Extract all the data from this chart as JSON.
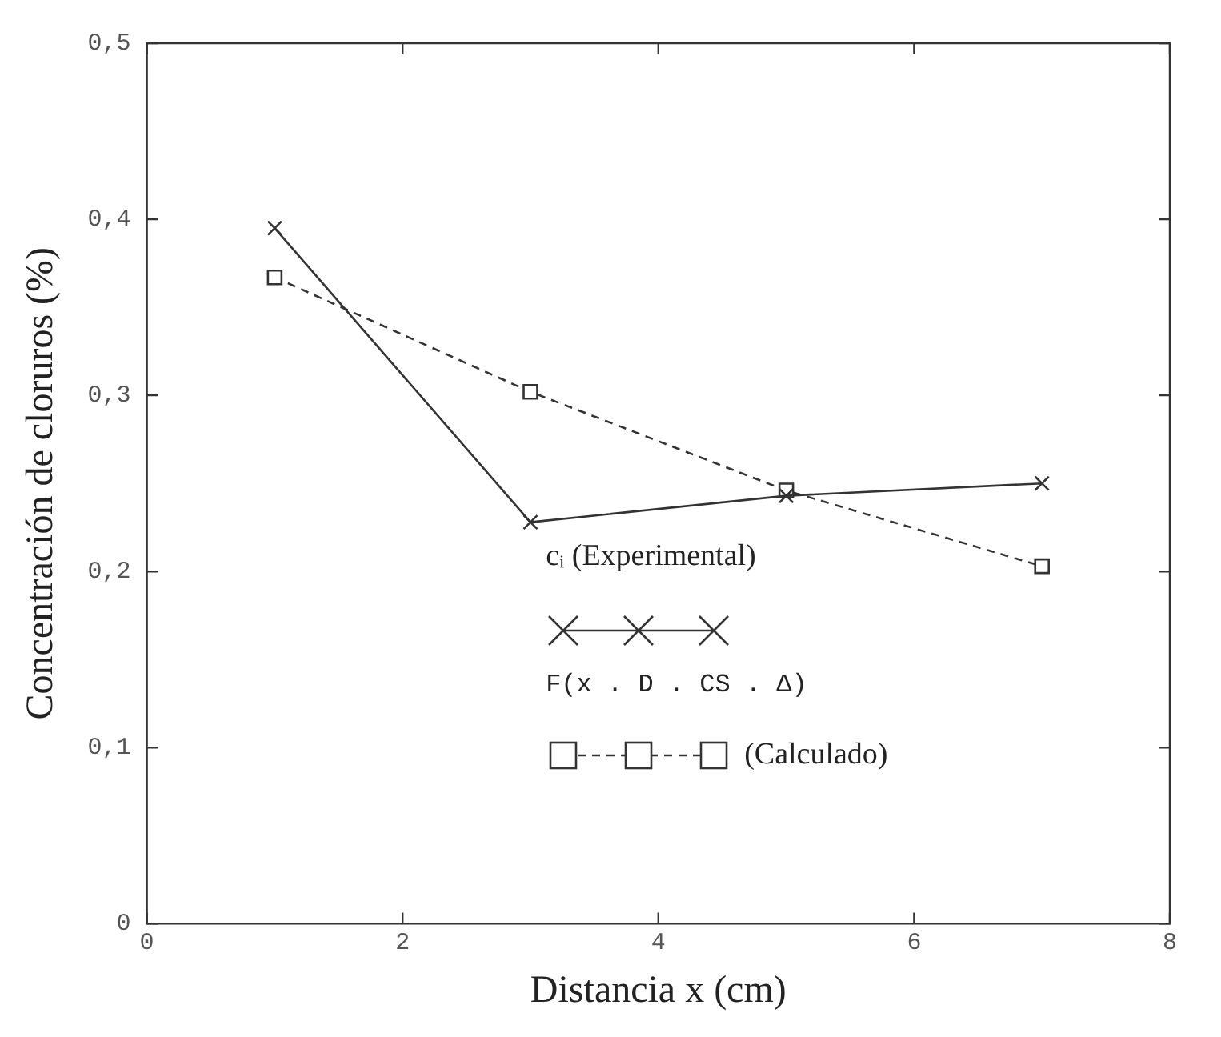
{
  "chart_data": {
    "type": "line",
    "xlabel": "Distancia x (cm)",
    "ylabel": "Concentración de cloruros (%)",
    "xlim": [
      0,
      8
    ],
    "xticks": [
      0,
      2,
      4,
      6,
      8
    ],
    "ylim": [
      0,
      0.5
    ],
    "yticks": [
      {
        "value": 0,
        "label": "0"
      },
      {
        "value": 0.1,
        "label": "0,1"
      },
      {
        "value": 0.2,
        "label": "0,2"
      },
      {
        "value": 0.3,
        "label": "0,3"
      },
      {
        "value": 0.4,
        "label": "0,4"
      },
      {
        "value": 0.5,
        "label": "0,5"
      }
    ],
    "grid": false,
    "legend": "bottom right",
    "annotations": [
      "F(x . D . CS . Δ)"
    ],
    "series": [
      {
        "name": "cᵢ (Experimental)",
        "color": "#333333",
        "marker": "cross",
        "line_style": "solid",
        "x": [
          1,
          3,
          5,
          7
        ],
        "values": [
          0.395,
          0.228,
          0.243,
          0.25
        ]
      },
      {
        "name": "(Calculado)",
        "color": "#333333",
        "marker": "square",
        "line_style": "dashed",
        "x": [
          1,
          3,
          5,
          7
        ],
        "values": [
          0.367,
          0.302,
          0.246,
          0.203
        ]
      }
    ]
  }
}
